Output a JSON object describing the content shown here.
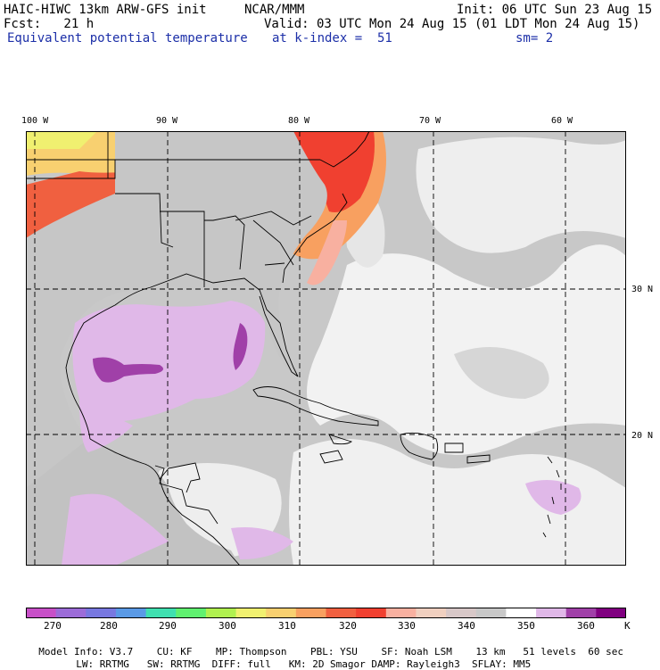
{
  "header": {
    "model_title": "HAIC-HIWC 13km ARW-GFS init",
    "org": "NCAR/MMM",
    "init": "Init: 06 UTC Sun 23 Aug 15",
    "fcst": "Fcst:   21 h",
    "valid": "Valid: 03 UTC Mon 24 Aug 15 (01 LDT Mon 24 Aug 15)",
    "field": "Equivalent potential temperature",
    "level": "at k-index =  51",
    "smooth": "sm= 2"
  },
  "map": {
    "lon_labels": [
      "100 W",
      "90 W",
      "80 W",
      "70 W",
      "60 W"
    ],
    "lat_labels": [
      "30 N",
      "20 N"
    ],
    "colors": {
      "ocean": "#c8c8c8",
      "gulf": "#e0b8e8",
      "warm": "#f04030",
      "pale": "#eeeeee"
    }
  },
  "colorbar": {
    "ticks": [
      "270",
      "280",
      "290",
      "300",
      "310",
      "320",
      "330",
      "340",
      "350",
      "360"
    ],
    "unit": "K",
    "colors": [
      "#c850c8",
      "#9c6cd8",
      "#7878e0",
      "#5a9ae6",
      "#40e0b0",
      "#60f070",
      "#b0f050",
      "#f0f070",
      "#f8d070",
      "#f8a060",
      "#f06040",
      "#f04030",
      "#f8b0a0",
      "#f0d0c0",
      "#d8c8c8",
      "#c8c8c8",
      "#ffffff",
      "#e0b8e8",
      "#a040a8",
      "#800080"
    ]
  },
  "footer": {
    "line1": [
      "Model Info: V3.7",
      "CU: KF",
      "MP: Thompson",
      "PBL: YSU",
      "SF: Noah LSM",
      "13 km",
      "51 levels",
      "60 sec"
    ],
    "line2": [
      "LW: RRTMG",
      "SW: RRTMG",
      "DIFF: full",
      "KM: 2D Smagor",
      "DAMP: Rayleigh3",
      "SFLAY: MM5"
    ]
  }
}
